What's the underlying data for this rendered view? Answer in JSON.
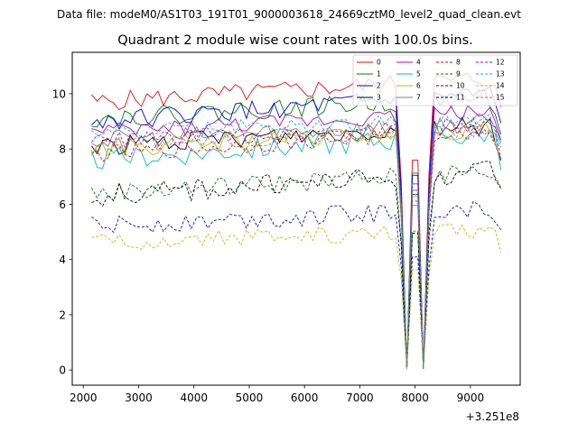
{
  "suptitle": "Data file: modeM0/AS1T03_191T01_9000003618_24669cztM0_level2_quad_clean.evt",
  "chart_data": {
    "type": "line",
    "title": "Quadrant 2 module wise count rates with 100.0s bins.",
    "xlabel": "",
    "ylabel": "",
    "x_offset_label": "+3.251e8",
    "xlim": [
      1800,
      9900
    ],
    "ylim": [
      -0.55,
      11.5
    ],
    "x_ticks": [
      2000,
      3000,
      4000,
      5000,
      6000,
      7000,
      8000,
      9000
    ],
    "x_tick_labels": [
      "2000",
      "3000",
      "4000",
      "5000",
      "6000",
      "7000",
      "8000",
      "9000"
    ],
    "y_ticks": [
      0,
      2,
      4,
      6,
      8,
      10
    ],
    "y_tick_labels": [
      "0",
      "2",
      "4",
      "6",
      "8",
      "10"
    ],
    "grid": false,
    "legend_position": "top-right",
    "x_start": 2150,
    "x_step": 100,
    "dip_centers": [
      7850,
      8150
    ],
    "series": [
      {
        "name": "0",
        "color": "#ff0000",
        "dash": "solid",
        "base": 9.7,
        "trend": 0.9,
        "noise": 0.35
      },
      {
        "name": "1",
        "color": "#008000",
        "dash": "solid",
        "base": 9.1,
        "trend": 0.8,
        "noise": 0.35
      },
      {
        "name": "2",
        "color": "#0000ff",
        "dash": "solid",
        "base": 9.0,
        "trend": 1.0,
        "noise": 0.35
      },
      {
        "name": "3",
        "color": "#000000",
        "dash": "solid",
        "base": 8.1,
        "trend": 0.8,
        "noise": 0.35
      },
      {
        "name": "4",
        "color": "#bf00bf",
        "dash": "solid",
        "base": 8.6,
        "trend": 0.8,
        "noise": 0.3
      },
      {
        "name": "5",
        "color": "#00bfbf",
        "dash": "solid",
        "base": 7.6,
        "trend": 1.0,
        "noise": 0.4
      },
      {
        "name": "6",
        "color": "#bfbf00",
        "dash": "solid",
        "base": 8.0,
        "trend": 0.7,
        "noise": 0.35
      },
      {
        "name": "7",
        "color": "#808080",
        "dash": "solid",
        "base": 8.3,
        "trend": 0.7,
        "noise": 0.35
      },
      {
        "name": "8",
        "color": "#ff0000",
        "dash": "dashed",
        "base": 7.8,
        "trend": 0.9,
        "noise": 0.3
      },
      {
        "name": "9",
        "color": "#008000",
        "dash": "dashed",
        "base": 6.4,
        "trend": 0.8,
        "noise": 0.35
      },
      {
        "name": "10",
        "color": "#0000ff",
        "dash": "dashed",
        "base": 5.2,
        "trend": 0.7,
        "noise": 0.35
      },
      {
        "name": "11",
        "color": "#000000",
        "dash": "dashed",
        "base": 6.3,
        "trend": 0.9,
        "noise": 0.4
      },
      {
        "name": "12",
        "color": "#bf00bf",
        "dash": "dashed",
        "base": 8.3,
        "trend": 0.6,
        "noise": 0.3
      },
      {
        "name": "13",
        "color": "#00bfbf",
        "dash": "dashed",
        "base": 8.6,
        "trend": 0.5,
        "noise": 0.3
      },
      {
        "name": "14",
        "color": "#bfbf00",
        "dash": "dashed",
        "base": 4.6,
        "trend": 0.5,
        "noise": 0.3
      },
      {
        "name": "15",
        "color": "#808080",
        "dash": "dashed",
        "base": 8.1,
        "trend": 0.6,
        "noise": 0.3
      }
    ]
  }
}
